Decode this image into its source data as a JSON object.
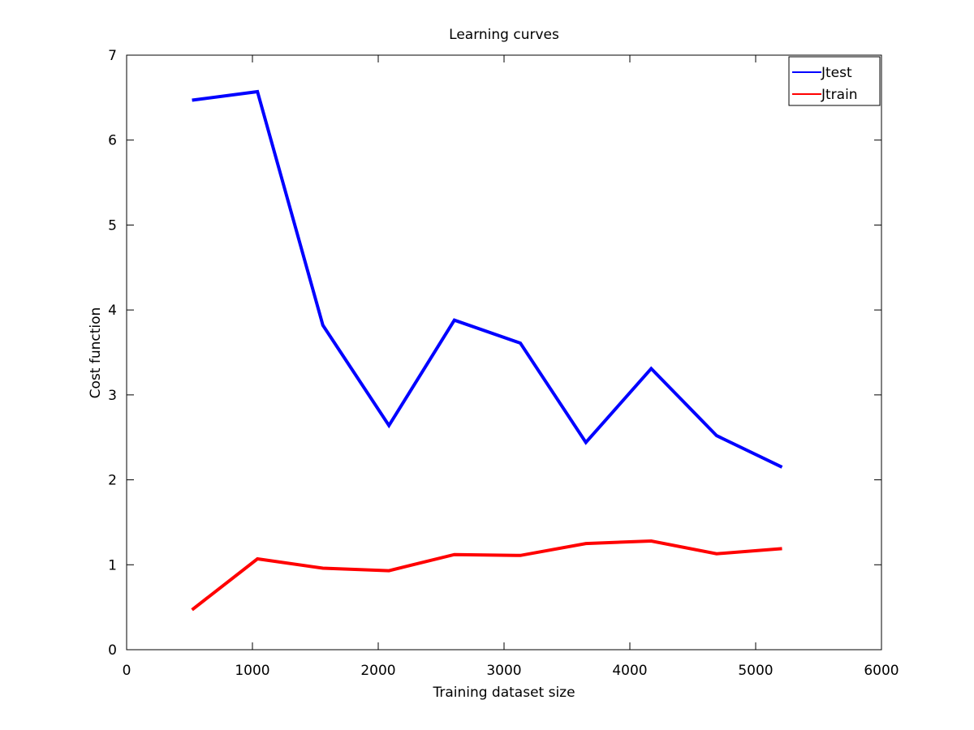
{
  "chart_data": {
    "type": "line",
    "title": "Learning curves",
    "xlabel": "Training dataset size",
    "ylabel": "Cost function",
    "xlim": [
      0,
      6000
    ],
    "ylim": [
      0,
      7
    ],
    "xticks": [
      0,
      1000,
      2000,
      3000,
      4000,
      5000,
      6000
    ],
    "yticks": [
      0,
      1,
      2,
      3,
      4,
      5,
      6,
      7
    ],
    "grid": false,
    "legend_position": "top-right",
    "series": [
      {
        "name": "Jtest",
        "color": "#0000ff",
        "x": [
          520,
          1040,
          1560,
          2085,
          2605,
          3130,
          3650,
          4170,
          4690,
          5210
        ],
        "y": [
          6.47,
          6.57,
          3.82,
          2.64,
          3.88,
          3.61,
          2.44,
          3.31,
          2.52,
          2.15
        ]
      },
      {
        "name": "Jtrain",
        "color": "#ff0000",
        "x": [
          520,
          1040,
          1560,
          2085,
          2605,
          3130,
          3650,
          4170,
          4690,
          5210
        ],
        "y": [
          0.47,
          1.07,
          0.96,
          0.93,
          1.12,
          1.11,
          1.25,
          1.28,
          1.13,
          1.19
        ]
      }
    ]
  }
}
